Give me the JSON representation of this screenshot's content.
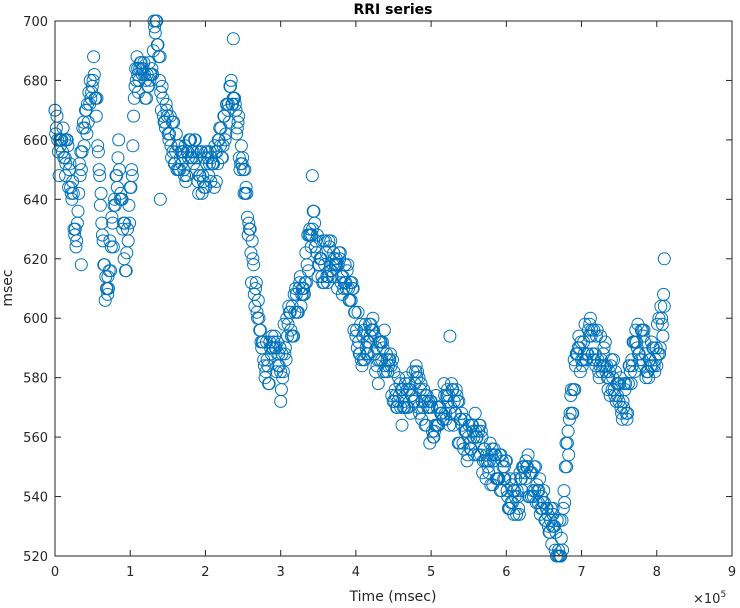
{
  "chart_data": {
    "type": "scatter",
    "title": "RRI series",
    "xlabel": "Time (msec)",
    "ylabel": "msec",
    "x_multiplier_base": "×10",
    "x_multiplier_exp": "5",
    "xlim": [
      0,
      9
    ],
    "ylim": [
      520,
      700
    ],
    "x_ticks": [
      0,
      1,
      2,
      3,
      4,
      5,
      6,
      7,
      8,
      9
    ],
    "y_ticks": [
      520,
      540,
      560,
      580,
      600,
      620,
      640,
      660,
      680,
      700
    ],
    "marker": "open-circle",
    "grid": false,
    "x_unit_note": "x values in units of 10^5 msec",
    "series": [
      {
        "color": "#0072BD",
        "control_points": [
          [
            0.0,
            668
          ],
          [
            0.05,
            652
          ],
          [
            0.12,
            660
          ],
          [
            0.22,
            645
          ],
          [
            0.27,
            625
          ],
          [
            0.35,
            655
          ],
          [
            0.42,
            668
          ],
          [
            0.48,
            678
          ],
          [
            0.53,
            683
          ],
          [
            0.56,
            670
          ],
          [
            0.6,
            645
          ],
          [
            0.65,
            615
          ],
          [
            0.7,
            610
          ],
          [
            0.75,
            625
          ],
          [
            0.8,
            640
          ],
          [
            0.85,
            652
          ],
          [
            0.9,
            630
          ],
          [
            0.95,
            620
          ],
          [
            1.0,
            640
          ],
          [
            1.05,
            668
          ],
          [
            1.1,
            685
          ],
          [
            1.15,
            682
          ],
          [
            1.22,
            678
          ],
          [
            1.3,
            688
          ],
          [
            1.35,
            700
          ],
          [
            1.4,
            680
          ],
          [
            1.5,
            665
          ],
          [
            1.6,
            655
          ],
          [
            1.7,
            652
          ],
          [
            1.8,
            658
          ],
          [
            1.9,
            650
          ],
          [
            2.0,
            648
          ],
          [
            2.1,
            650
          ],
          [
            2.2,
            658
          ],
          [
            2.3,
            668
          ],
          [
            2.37,
            680
          ],
          [
            2.45,
            660
          ],
          [
            2.55,
            640
          ],
          [
            2.62,
            618
          ],
          [
            2.7,
            600
          ],
          [
            2.75,
            590
          ],
          [
            2.85,
            585
          ],
          [
            2.95,
            588
          ],
          [
            3.0,
            582
          ],
          [
            3.05,
            590
          ],
          [
            3.15,
            600
          ],
          [
            3.25,
            610
          ],
          [
            3.35,
            618
          ],
          [
            3.42,
            635
          ],
          [
            3.5,
            622
          ],
          [
            3.6,
            618
          ],
          [
            3.7,
            620
          ],
          [
            3.8,
            615
          ],
          [
            3.9,
            610
          ],
          [
            4.0,
            598
          ],
          [
            4.1,
            590
          ],
          [
            4.2,
            595
          ],
          [
            4.3,
            585
          ],
          [
            4.4,
            590
          ],
          [
            4.5,
            580
          ],
          [
            4.6,
            570
          ],
          [
            4.7,
            575
          ],
          [
            4.8,
            578
          ],
          [
            4.9,
            570
          ],
          [
            5.0,
            565
          ],
          [
            5.1,
            568
          ],
          [
            5.2,
            572
          ],
          [
            5.3,
            570
          ],
          [
            5.4,
            562
          ],
          [
            5.5,
            556
          ],
          [
            5.6,
            560
          ],
          [
            5.7,
            555
          ],
          [
            5.8,
            550
          ],
          [
            5.9,
            548
          ],
          [
            6.0,
            545
          ],
          [
            6.1,
            538
          ],
          [
            6.2,
            542
          ],
          [
            6.3,
            548
          ],
          [
            6.4,
            545
          ],
          [
            6.5,
            538
          ],
          [
            6.6,
            530
          ],
          [
            6.7,
            525
          ],
          [
            6.75,
            530
          ],
          [
            6.8,
            555
          ],
          [
            6.9,
            580
          ],
          [
            7.0,
            592
          ],
          [
            7.1,
            595
          ],
          [
            7.2,
            590
          ],
          [
            7.3,
            585
          ],
          [
            7.4,
            580
          ],
          [
            7.5,
            576
          ],
          [
            7.6,
            570
          ],
          [
            7.7,
            590
          ],
          [
            7.8,
            592
          ],
          [
            7.9,
            586
          ],
          [
            8.0,
            590
          ],
          [
            8.05,
            597
          ],
          [
            8.1,
            600
          ]
        ],
        "outliers": [
          [
            0.0,
            670
          ],
          [
            0.14,
            648
          ],
          [
            0.35,
            618
          ],
          [
            0.7,
            608
          ],
          [
            1.1,
            684
          ],
          [
            1.35,
            700
          ],
          [
            1.4,
            640
          ],
          [
            2.37,
            694
          ],
          [
            3.0,
            572
          ],
          [
            3.42,
            648
          ],
          [
            5.25,
            594
          ],
          [
            6.62,
            534
          ],
          [
            6.72,
            520
          ],
          [
            8.1,
            620
          ]
        ]
      }
    ]
  }
}
